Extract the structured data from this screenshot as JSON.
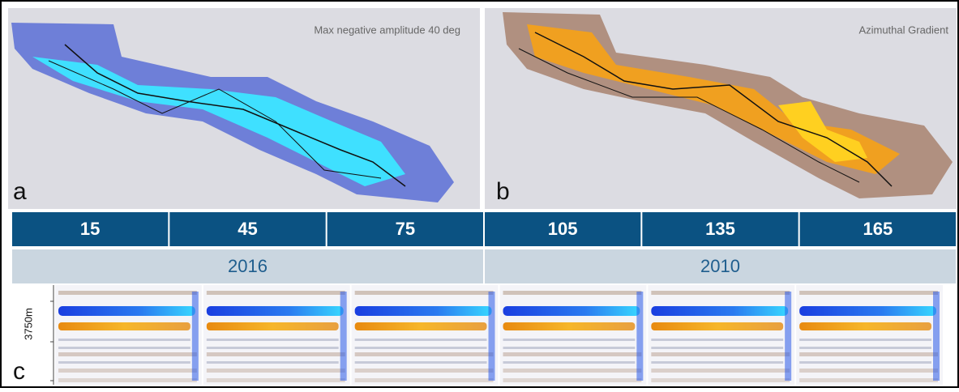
{
  "panel_a": {
    "label": "a",
    "title": "Max negative amplitude 40 deg"
  },
  "panel_b": {
    "label": "b",
    "title": "Azimuthal Gradient"
  },
  "angles": [
    15,
    45,
    75,
    105,
    135,
    165
  ],
  "years": [
    "2016",
    "2010"
  ],
  "panel_c": {
    "label": "c",
    "depth_label": "3750m"
  }
}
